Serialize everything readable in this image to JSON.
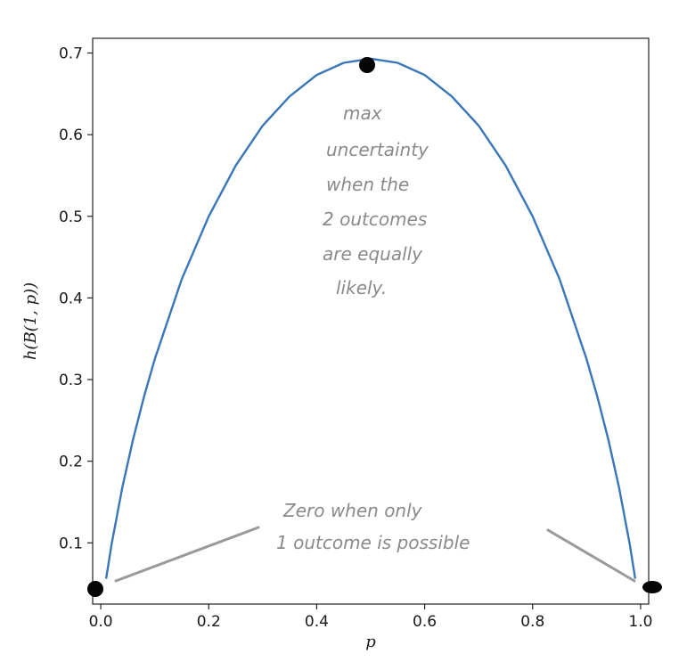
{
  "chart_data": {
    "type": "line",
    "xlabel": "p",
    "ylabel": "h(B(1, p))",
    "xlim": [
      -0.015,
      1.015
    ],
    "ylim": [
      0.025,
      0.718
    ],
    "x_ticks": [
      "0.0",
      "0.2",
      "0.4",
      "0.6",
      "0.8",
      "1.0"
    ],
    "y_ticks": [
      "0.1",
      "0.2",
      "0.3",
      "0.4",
      "0.5",
      "0.6",
      "0.7"
    ],
    "grid": false,
    "series": [
      {
        "color": "#3a76b8",
        "x": [
          0.01,
          0.02,
          0.04,
          0.06,
          0.08,
          0.1,
          0.15,
          0.2,
          0.25,
          0.3,
          0.35,
          0.4,
          0.45,
          0.5,
          0.55,
          0.6,
          0.65,
          0.7,
          0.75,
          0.8,
          0.85,
          0.9,
          0.92,
          0.94,
          0.96,
          0.98,
          0.99
        ],
        "y": [
          0.056,
          0.098,
          0.168,
          0.227,
          0.279,
          0.325,
          0.423,
          0.5,
          0.562,
          0.611,
          0.647,
          0.673,
          0.688,
          0.693,
          0.688,
          0.673,
          0.647,
          0.611,
          0.562,
          0.5,
          0.423,
          0.325,
          0.279,
          0.227,
          0.168,
          0.098,
          0.056
        ]
      }
    ],
    "annotations": {
      "top_note": [
        "max",
        "uncertainty",
        "when the",
        "2 outcomes",
        "are equally",
        "likely."
      ],
      "bottom_note": [
        "Zero when only",
        "1 outcome is possible"
      ]
    }
  }
}
